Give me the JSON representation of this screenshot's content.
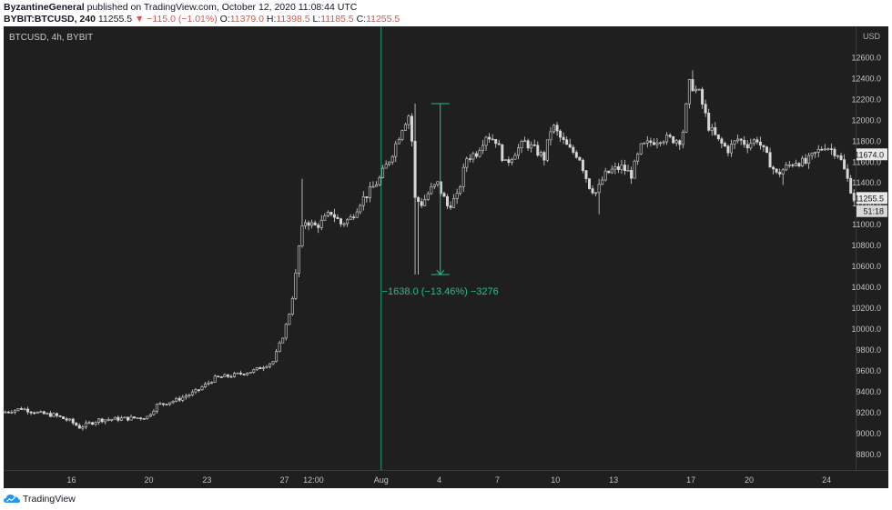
{
  "header": {
    "author": "ByzantineGeneral",
    "published_text": "published on TradingView.com, October 12, 2020 11:08:44 UTC",
    "symbol": "BYBIT:BTCUSD, 240",
    "last": "11255.5",
    "change": "▼ −115.0 (−1.01%)",
    "o_label": "O:",
    "o_value": "11379.0",
    "h_label": "H:",
    "h_value": "11398.5",
    "l_label": "L:",
    "l_value": "11185.5",
    "c_label": "C:",
    "c_value": "11255.5"
  },
  "chart_data": {
    "type": "candlestick",
    "legend": "BTCUSD, 4h, BYBIT",
    "currency": "USD",
    "ylim": [
      8650,
      12900
    ],
    "y_ticks": [
      8800,
      9000,
      9200,
      9400,
      9600,
      9800,
      10000,
      10200,
      10400,
      10600,
      10800,
      11000,
      11200,
      11400,
      11600,
      11800,
      12000,
      12200,
      12400,
      12600
    ],
    "x_ticks": [
      {
        "day": 16,
        "label": "16"
      },
      {
        "day": 20,
        "label": "20"
      },
      {
        "day": 23,
        "label": "23"
      },
      {
        "day": 27,
        "label": "27"
      },
      {
        "day": 28.5,
        "label": "12:00"
      },
      {
        "day": 32,
        "label": "Aug"
      },
      {
        "day": 35,
        "label": "4"
      },
      {
        "day": 38,
        "label": "7"
      },
      {
        "day": 41,
        "label": "10"
      },
      {
        "day": 44,
        "label": "13"
      },
      {
        "day": 48,
        "label": "17"
      },
      {
        "day": 51,
        "label": "20"
      },
      {
        "day": 55,
        "label": "24"
      }
    ],
    "xlim_days": [
      12.5,
      56.5
    ],
    "cursor_day": 32,
    "price_tags": [
      {
        "label": "11674.0",
        "value": 11674
      },
      {
        "label": "11255.5",
        "value": 11255.5
      },
      {
        "label": "51:18",
        "value": 11130
      }
    ],
    "measure": {
      "day": 35.05,
      "from": 12160,
      "to": 10522,
      "label": "−1638.0 (−13.46%) −3276"
    },
    "closes_keypoints": [
      [
        12.5,
        9200
      ],
      [
        13.5,
        9240
      ],
      [
        14.5,
        9190
      ],
      [
        15.2,
        9175
      ],
      [
        16.0,
        9120
      ],
      [
        16.5,
        9060
      ],
      [
        17.5,
        9130
      ],
      [
        18.5,
        9140
      ],
      [
        19.5,
        9150
      ],
      [
        20.0,
        9160
      ],
      [
        20.5,
        9270
      ],
      [
        21.5,
        9320
      ],
      [
        22.5,
        9400
      ],
      [
        23.5,
        9530
      ],
      [
        24.5,
        9560
      ],
      [
        25.5,
        9600
      ],
      [
        26.5,
        9690
      ],
      [
        27.0,
        9930
      ],
      [
        27.3,
        10120
      ],
      [
        27.6,
        10400
      ],
      [
        27.9,
        10900
      ],
      [
        28.2,
        11050
      ],
      [
        28.6,
        10980
      ],
      [
        29.0,
        11020
      ],
      [
        29.5,
        11120
      ],
      [
        30.0,
        11010
      ],
      [
        30.5,
        11060
      ],
      [
        31.0,
        11220
      ],
      [
        31.5,
        11320
      ],
      [
        32.0,
        11440
      ],
      [
        32.6,
        11660
      ],
      [
        33.2,
        11950
      ],
      [
        33.6,
        12080
      ],
      [
        33.8,
        11250
      ],
      [
        34.2,
        11200
      ],
      [
        34.6,
        11330
      ],
      [
        35.0,
        11390
      ],
      [
        35.5,
        11180
      ],
      [
        36.0,
        11260
      ],
      [
        36.5,
        11640
      ],
      [
        37.0,
        11690
      ],
      [
        37.5,
        11860
      ],
      [
        38.0,
        11810
      ],
      [
        38.5,
        11580
      ],
      [
        39.0,
        11700
      ],
      [
        39.5,
        11790
      ],
      [
        40.0,
        11720
      ],
      [
        40.5,
        11640
      ],
      [
        40.9,
        11960
      ],
      [
        41.3,
        11840
      ],
      [
        41.8,
        11720
      ],
      [
        42.3,
        11660
      ],
      [
        42.8,
        11380
      ],
      [
        43.2,
        11300
      ],
      [
        43.6,
        11470
      ],
      [
        44.0,
        11520
      ],
      [
        44.5,
        11550
      ],
      [
        45.0,
        11480
      ],
      [
        45.5,
        11740
      ],
      [
        46.0,
        11790
      ],
      [
        46.5,
        11830
      ],
      [
        47.0,
        11820
      ],
      [
        47.6,
        11810
      ],
      [
        48.0,
        12350
      ],
      [
        48.5,
        12260
      ],
      [
        49.0,
        11940
      ],
      [
        49.5,
        11800
      ],
      [
        50.0,
        11720
      ],
      [
        50.5,
        11820
      ],
      [
        51.0,
        11770
      ],
      [
        51.5,
        11820
      ],
      [
        52.0,
        11650
      ],
      [
        52.5,
        11480
      ],
      [
        53.0,
        11550
      ],
      [
        53.5,
        11610
      ],
      [
        54.0,
        11590
      ],
      [
        54.5,
        11680
      ],
      [
        55.0,
        11760
      ],
      [
        55.7,
        11680
      ],
      [
        56.5,
        11255
      ]
    ]
  },
  "footer": {
    "brand": "TradingView"
  }
}
